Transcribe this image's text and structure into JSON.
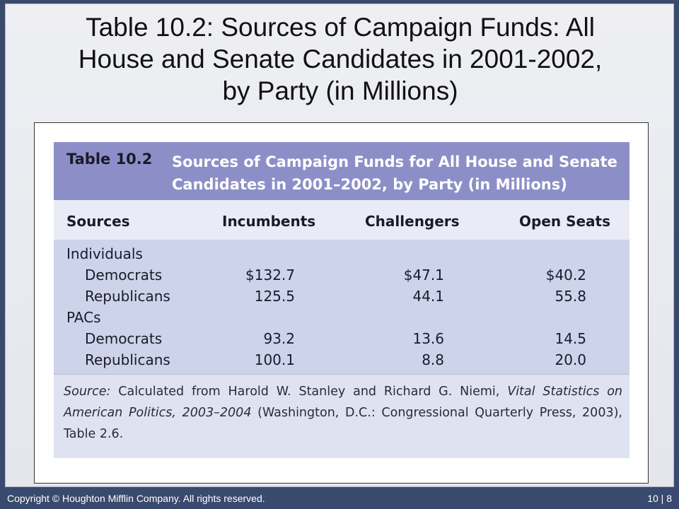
{
  "slide": {
    "title_lines": [
      "Table 10.2: Sources of Campaign Funds: All",
      "House and Senate Candidates in 2001-2002,",
      "by Party (in Millions)"
    ]
  },
  "table": {
    "label": "Table 10.2",
    "title_line1": "Sources of Campaign Funds for All House and Senate",
    "title_line2": "Candidates in  2001–2002, by Party (in Millions)",
    "columns": [
      "Sources",
      "Incumbents",
      "Challengers",
      "Open Seats"
    ],
    "groups": [
      {
        "name": "Individuals",
        "rows": [
          {
            "label": "Democrats",
            "values": [
              "$132.7",
              "$47.1",
              "$40.2"
            ]
          },
          {
            "label": "Republicans",
            "values": [
              "125.5",
              "44.1",
              "55.8"
            ]
          }
        ]
      },
      {
        "name": "PACs",
        "rows": [
          {
            "label": "Democrats",
            "values": [
              "93.2",
              "13.6",
              "14.5"
            ]
          },
          {
            "label": "Republicans",
            "values": [
              "100.1",
              "8.8",
              "20.0"
            ]
          }
        ]
      }
    ],
    "source": {
      "prefix": "Source:",
      "text1": " Calculated from Harold W. Stanley and Richard G. Niemi, ",
      "title": "Vital Statistics on American Politics, 2003–2004",
      "text2": " (Washington, D.C.: Congressional Quarterly Press, 2003),  Table 2.6."
    }
  },
  "footer": {
    "copyright": "Copyright © Houghton Mifflin Company. All rights reserved.",
    "page": "10 | 8"
  }
}
